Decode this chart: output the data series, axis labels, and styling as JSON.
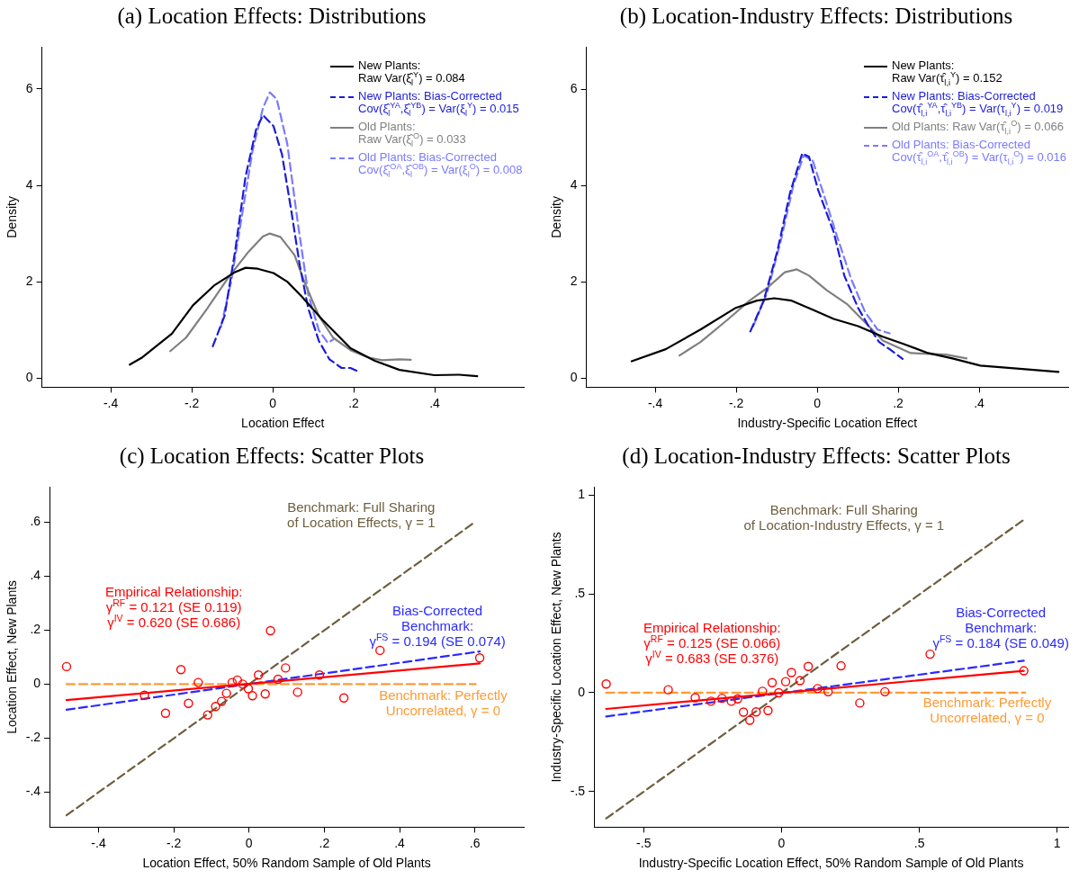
{
  "chart_data": [
    {
      "type": "line",
      "title": "(a) Location Effects: Distributions",
      "xlabel": "Location Effect",
      "ylabel": "Density",
      "xlim": [
        -0.57,
        0.62
      ],
      "ylim": [
        -0.19,
        6.87
      ],
      "xticks": [
        {
          "value": -0.4,
          "label": "-.4"
        },
        {
          "value": -0.2,
          "label": "-.2"
        },
        {
          "value": 0,
          "label": "0"
        },
        {
          "value": 0.2,
          "label": ".2"
        },
        {
          "value": 0.4,
          "label": ".4"
        }
      ],
      "yticks": [
        {
          "value": 0,
          "label": "0"
        },
        2,
        4,
        6
      ],
      "grid": false,
      "legend": "top right",
      "series": [
        {
          "name": "New Plants:\nRaw Var(ξ̂$_{l}$$^{Y}$) = 0.084",
          "color": "#000000",
          "line_style": "solid",
          "x": [
            -0.353,
            -0.322,
            -0.249,
            -0.197,
            -0.145,
            -0.093,
            -0.067,
            -0.037,
            0.002,
            0.036,
            0.071,
            0.123,
            0.192,
            0.252,
            0.313,
            0.399,
            0.46,
            0.505
          ],
          "values": [
            0.28,
            0.43,
            0.92,
            1.51,
            1.92,
            2.2,
            2.29,
            2.27,
            2.18,
            2.0,
            1.7,
            1.21,
            0.62,
            0.36,
            0.17,
            0.06,
            0.07,
            0.04
          ]
        },
        {
          "name": "New Plants: Bias-Corrected\nCov(ξ̂$_{l}$$^{YA}$,ξ̂$_{l}$$^{YB}$) = Var(ξ$_{l}$$^{Y}$) = 0.015",
          "color": "#1c1cd8",
          "line_style": "dashed",
          "x": [
            -0.148,
            -0.119,
            -0.093,
            -0.067,
            -0.041,
            -0.024,
            0.002,
            0.023,
            0.045,
            0.067,
            0.088,
            0.114,
            0.14,
            0.17,
            0.192,
            0.213
          ],
          "values": [
            0.66,
            1.29,
            2.63,
            4.19,
            5.16,
            5.46,
            5.23,
            4.64,
            3.52,
            2.33,
            1.44,
            0.77,
            0.39,
            0.21,
            0.21,
            0.13
          ]
        },
        {
          "name": "Old Plants:\nRaw Var(ξ̂$_{l}$$^{O}$) = 0.033",
          "color": "#808080",
          "line_style": "solid",
          "x": [
            -0.253,
            -0.214,
            -0.162,
            -0.111,
            -0.059,
            -0.024,
            -0.007,
            0.019,
            0.054,
            0.08,
            0.114,
            0.149,
            0.192,
            0.235,
            0.27,
            0.313,
            0.341
          ],
          "values": [
            0.56,
            0.84,
            1.44,
            2.07,
            2.63,
            2.94,
            3.0,
            2.93,
            2.55,
            1.96,
            1.29,
            0.84,
            0.58,
            0.43,
            0.37,
            0.39,
            0.38
          ]
        },
        {
          "name": "Old Plants: Bias-Corrected\nCov(ξ̂$_{l}$$^{OA}$,ξ̂$_{l}$$^{OB}$) = Var(ξ$_{l}$$^{O}$) = 0.008",
          "color": "#7a7aff",
          "line_style": "dashed",
          "x": [
            -0.128,
            -0.102,
            -0.076,
            -0.05,
            -0.024,
            -0.007,
            0.01,
            0.036,
            0.062,
            0.088,
            0.114,
            0.136,
            0.149
          ],
          "values": [
            1.06,
            2.03,
            3.37,
            4.71,
            5.61,
            5.93,
            5.79,
            4.86,
            3.22,
            1.73,
            0.99,
            0.73,
            0.8
          ]
        }
      ]
    },
    {
      "type": "line",
      "title": "(b) Location-Industry Effects: Distributions",
      "xlabel": "Industry-Specific Location Effect",
      "ylabel": "Density",
      "xlim": [
        -0.57,
        0.62
      ],
      "ylim": [
        -0.19,
        6.88
      ],
      "xticks": [
        {
          "value": -0.4,
          "label": "-.4"
        },
        {
          "value": -0.2,
          "label": "-.2"
        },
        {
          "value": 0,
          "label": "0"
        },
        {
          "value": 0.2,
          "label": ".2"
        },
        {
          "value": 0.4,
          "label": ".4"
        }
      ],
      "yticks": [
        {
          "value": 0,
          "label": "0"
        },
        2,
        4,
        6
      ],
      "grid": false,
      "legend": "top right",
      "series": [
        {
          "name": "New Plants:\nRaw Var(τ̂$_{l,i}$$^{Y}$) = 0.152",
          "color": "#000000",
          "line_style": "solid",
          "x": [
            -0.458,
            -0.374,
            -0.288,
            -0.201,
            -0.149,
            -0.106,
            -0.063,
            -0.011,
            0.041,
            0.101,
            0.162,
            0.213,
            0.274,
            0.334,
            0.403,
            0.507,
            0.596
          ],
          "values": [
            0.35,
            0.6,
            1.01,
            1.46,
            1.61,
            1.66,
            1.61,
            1.42,
            1.23,
            1.08,
            0.86,
            0.71,
            0.52,
            0.41,
            0.26,
            0.19,
            0.13
          ]
        },
        {
          "name": "New Plants: Bias-Corrected\nCov(τ̂$_{l,i}$$^{YA}$,τ̂$_{l,i}$$^{YB}$) = Var(τ$_{l,i}$$^{Y}$) = 0.019",
          "color": "#1c1cd8",
          "line_style": "dashed",
          "x": [
            -0.165,
            -0.132,
            -0.098,
            -0.067,
            -0.037,
            -0.02,
            0.002,
            0.041,
            0.067,
            0.101,
            0.127,
            0.153,
            0.179,
            0.211
          ],
          "values": [
            0.97,
            1.61,
            2.65,
            3.85,
            4.67,
            4.6,
            3.92,
            3.03,
            2.13,
            1.46,
            1.08,
            0.75,
            0.6,
            0.4
          ]
        },
        {
          "name": "Old Plants: Raw Var(τ̂$_{l,i}$$^{O}$) = 0.066",
          "color": "#808080",
          "line_style": "solid",
          "x": [
            -0.34,
            -0.288,
            -0.219,
            -0.167,
            -0.124,
            -0.08,
            -0.05,
            -0.02,
            0.023,
            0.075,
            0.11,
            0.162,
            0.231,
            0.318,
            0.369
          ],
          "values": [
            0.47,
            0.75,
            1.23,
            1.61,
            1.87,
            2.2,
            2.26,
            2.13,
            1.83,
            1.53,
            1.23,
            0.78,
            0.52,
            0.49,
            0.41
          ]
        },
        {
          "name": "Old Plants: Bias-Corrected\nCov(τ̂$_{l,i}$$^{OA}$,τ̂$_{l,i}$$^{OB}$) = Var(τ$_{l,i}$$^{O}$) = 0.016",
          "color": "#7a7aff",
          "line_style": "dashed",
          "x": [
            -0.158,
            -0.124,
            -0.089,
            -0.059,
            -0.033,
            -0.011,
            0.015,
            0.049,
            0.084,
            0.118,
            0.149,
            0.179
          ],
          "values": [
            1.08,
            1.76,
            2.88,
            4.0,
            4.63,
            4.52,
            3.85,
            2.95,
            2.06,
            1.38,
            1.01,
            0.93
          ]
        }
      ]
    },
    {
      "type": "scatter",
      "title": "(c) Location Effects: Scatter Plots",
      "xlabel": "Location Effect, 50% Random Sample of Old Plants",
      "ylabel": "Location Effect, New Plants",
      "xlim": [
        -0.53,
        0.73
      ],
      "ylim": [
        -0.53,
        0.73
      ],
      "xticks": [
        {
          "value": -0.4,
          "label": "-.4"
        },
        {
          "value": -0.2,
          "label": "-.2"
        },
        {
          "value": 0,
          "label": "0"
        },
        {
          "value": 0.2,
          "label": ".2"
        },
        {
          "value": 0.4,
          "label": ".4"
        },
        {
          "value": 0.6,
          "label": ".6"
        }
      ],
      "yticks": [
        {
          "value": -0.4,
          "label": "-.4"
        },
        {
          "value": -0.2,
          "label": "-.2"
        },
        {
          "value": 0,
          "label": "0"
        },
        {
          "value": 0.2,
          "label": ".2"
        },
        {
          "value": 0.4,
          "label": ".4"
        },
        {
          "value": 0.6,
          "label": ".6"
        }
      ],
      "grid": false,
      "legend": false,
      "series": [
        {
          "marker": "circle",
          "color": "#ff0000",
          "x": [
            -0.485,
            -0.278,
            -0.222,
            -0.181,
            -0.161,
            -0.135,
            -0.11,
            -0.089,
            -0.073,
            -0.06,
            -0.045,
            -0.031,
            -0.017,
            -0.002,
            0.009,
            0.025,
            0.043,
            0.057,
            0.077,
            0.097,
            0.129,
            0.187,
            0.252,
            0.348,
            0.613
          ],
          "values": [
            0.065,
            -0.041,
            -0.108,
            0.054,
            -0.071,
            0.006,
            -0.114,
            -0.083,
            -0.064,
            -0.034,
            0.006,
            0.015,
            0.0,
            -0.017,
            -0.043,
            0.034,
            -0.036,
            0.198,
            0.018,
            0.06,
            -0.03,
            0.034,
            -0.051,
            0.125,
            0.097
          ]
        },
        {
          "type": "line",
          "name": "Empirical Relationship:\nγ$^{RF}$ = 0.121 (SE 0.119)\nγ$^{IV}$ = 0.620 (SE 0.686)",
          "color": "#ff0000",
          "line_style": "solid",
          "x": [
            -0.485,
            0.613
          ],
          "values": [
            -0.059,
            0.077
          ]
        },
        {
          "type": "line",
          "name": "Bias-Corrected\nBenchmark:\nγ$^{FS}$ = 0.194 (SE 0.074)",
          "color": "#2a2aff",
          "line_style": "dashed",
          "x": [
            -0.485,
            0.613
          ],
          "values": [
            -0.095,
            0.121
          ]
        },
        {
          "type": "line",
          "name": "Benchmark: Full Sharing\nof Location Effects, γ = 1",
          "color": "#6e5e3e",
          "line_style": "dashed",
          "x": [
            -0.485,
            0.602
          ],
          "values": [
            -0.486,
            0.602
          ]
        },
        {
          "type": "line",
          "name": "Benchmark: Perfectly\nUncorrelated, γ = 0",
          "color": "#ff9a33",
          "line_style": "dashed",
          "x": [
            -0.485,
            0.602
          ],
          "values": [
            0,
            0
          ]
        }
      ]
    },
    {
      "type": "scatter",
      "title": "(d) Location-Industry Effects: Scatter Plots",
      "xlabel": "Industry-Specific Location Effect, 50% Random Sample of Old Plants",
      "ylabel": "Industry-Specific Location Effect, New Plants",
      "xlim": [
        -0.68,
        1.04
      ],
      "ylim": [
        -0.68,
        1.04
      ],
      "xticks": [
        {
          "value": -0.5,
          "label": "-.5"
        },
        {
          "value": 0,
          "label": "0"
        },
        {
          "value": 0.5,
          "label": ".5"
        },
        1
      ],
      "yticks": [
        {
          "value": -0.5,
          "label": "-.5"
        },
        {
          "value": 0,
          "label": "0"
        },
        {
          "value": 0.5,
          "label": ".5"
        },
        1
      ],
      "grid": false,
      "legend": false,
      "series": [
        {
          "marker": "circle",
          "color": "#ff0000",
          "x": [
            -0.636,
            -0.411,
            -0.313,
            -0.256,
            -0.216,
            -0.182,
            -0.159,
            -0.138,
            -0.115,
            -0.092,
            -0.069,
            -0.049,
            -0.034,
            -0.01,
            0.015,
            0.036,
            0.067,
            0.097,
            0.131,
            0.169,
            0.216,
            0.284,
            0.375,
            0.539,
            0.879
          ],
          "values": [
            0.044,
            0.015,
            -0.025,
            -0.043,
            -0.028,
            -0.043,
            -0.031,
            -0.098,
            -0.139,
            -0.097,
            0.007,
            -0.09,
            0.051,
            0.0,
            0.056,
            0.102,
            0.061,
            0.133,
            0.021,
            0.005,
            0.136,
            -0.052,
            0.005,
            0.195,
            0.111
          ]
        },
        {
          "type": "line",
          "name": "Empirical Relationship:\nγ$^{RF}$ = 0.125 (SE 0.066)\nγ$^{IV}$ = 0.683 (SE 0.376)",
          "color": "#ff0000",
          "line_style": "solid",
          "x": [
            -0.636,
            0.879
          ],
          "values": [
            -0.082,
            0.111
          ]
        },
        {
          "type": "line",
          "name": "Bias-Corrected\nBenchmark:\nγ$^{FS}$ = 0.184  (SE 0.049)",
          "color": "#2a2aff",
          "line_style": "dashed",
          "x": [
            -0.636,
            0.879
          ],
          "values": [
            -0.12,
            0.162
          ]
        },
        {
          "type": "line",
          "name": "Benchmark: Full Sharing\nof Location-Industry Effects, γ = 1",
          "color": "#6e5e3e",
          "line_style": "dashed",
          "x": [
            -0.636,
            0.884
          ],
          "values": [
            -0.636,
            0.88
          ]
        },
        {
          "type": "line",
          "name": "Benchmark: Perfectly\nUncorrelated, γ = 0",
          "color": "#ff9a33",
          "line_style": "dashed",
          "x": [
            -0.636,
            0.884
          ],
          "values": [
            0,
            0
          ]
        }
      ]
    }
  ]
}
